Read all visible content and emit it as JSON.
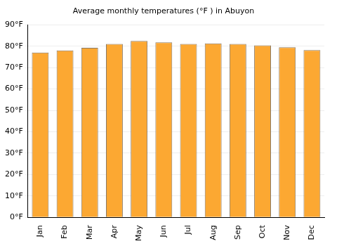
{
  "chart_data": {
    "type": "bar",
    "title": "Average monthly temperatures (°F ) in Abuyon",
    "categories": [
      "Jan",
      "Feb",
      "Mar",
      "Apr",
      "May",
      "Jun",
      "Jul",
      "Aug",
      "Sep",
      "Oct",
      "Nov",
      "Dec"
    ],
    "values": [
      77,
      78,
      79.2,
      81,
      82.4,
      81.8,
      81,
      81.3,
      81,
      80.4,
      79.5,
      78.2
    ],
    "color": "#fca832",
    "ylim": [
      0,
      90
    ],
    "yticks": [
      {
        "value": 0,
        "label": "0°F"
      },
      {
        "value": 10,
        "label": "10°F"
      },
      {
        "value": 20,
        "label": "20°F"
      },
      {
        "value": 30,
        "label": "30°F"
      },
      {
        "value": 40,
        "label": "40°F"
      },
      {
        "value": 50,
        "label": "50°F"
      },
      {
        "value": 60,
        "label": "60°F"
      },
      {
        "value": 70,
        "label": "70°F"
      },
      {
        "value": 80,
        "label": "80°F"
      },
      {
        "value": 90,
        "label": "90°F"
      }
    ],
    "grid": true
  }
}
